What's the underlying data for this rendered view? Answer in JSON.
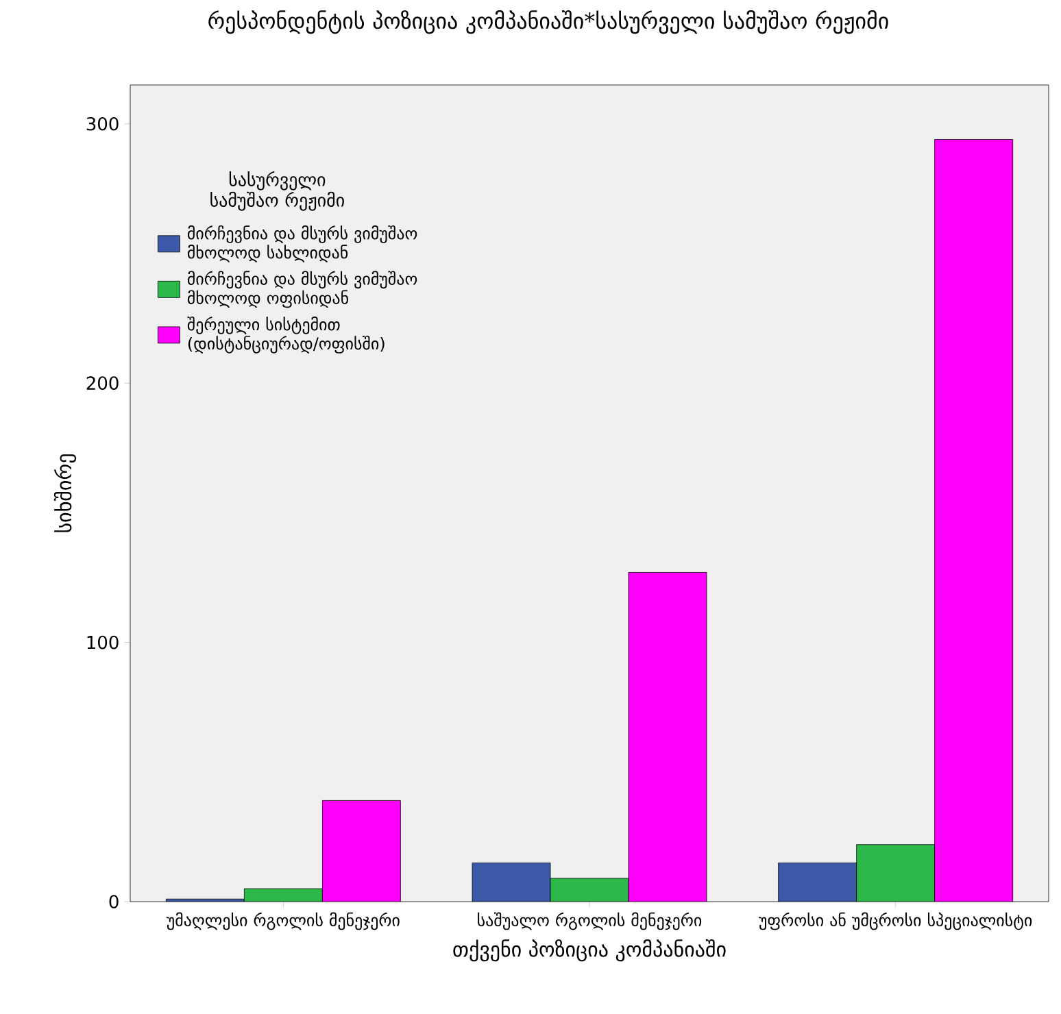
{
  "chart_data": {
    "type": "bar",
    "title": "რესპონდენტის პოზიცია კომპანიაში*სასურველი სამუშაო რეჟიმი",
    "xlabel": "თქვენი პოზიცია კომპანიაში",
    "ylabel": "სიხშირე",
    "legend_title": "სასურველი სამუშაო რეჟიმი",
    "legend": "top left",
    "categories": [
      "უმაღლესი რგოლის მენეჯერი",
      "საშუალო რგოლის მენეჯერი",
      "უფროსი ან უმცროსი სპეციალისტი"
    ],
    "series": [
      {
        "name": "მირჩევნია და მსურს ვიმუშაო მხოლოდ სახლიდან",
        "color": "#3c58a8",
        "values": [
          1,
          15,
          15
        ]
      },
      {
        "name": "მირჩევნია და მსურს ვიმუშაო მხოლოდ ოფისიდან",
        "color": "#2db84a",
        "values": [
          5,
          9,
          22
        ]
      },
      {
        "name": "შერეული სისტემით (დისტანციურად/ოფისში)",
        "color": "#ff00ff",
        "values": [
          39,
          127,
          294
        ]
      }
    ],
    "ylim": [
      0,
      315
    ],
    "yticks": [
      0,
      100,
      200,
      300
    ]
  }
}
